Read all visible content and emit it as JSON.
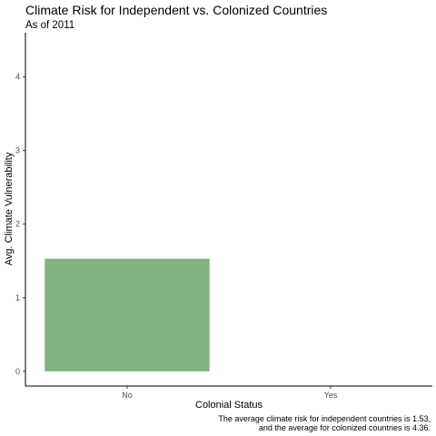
{
  "chart_data": {
    "type": "bar",
    "title": "Climate Risk for Independent vs. Colonized Countries",
    "subtitle": "As of 2011",
    "xlabel": "Colonial Status",
    "ylabel": "Avg. Climate Vulnerability",
    "categories": [
      "No",
      "Yes"
    ],
    "values": [
      1.53,
      null
    ],
    "yticks": [
      0,
      1,
      2,
      3,
      4
    ],
    "ylim": [
      -0.2,
      4.6
    ],
    "grid": false,
    "bar_color": "#80b280",
    "caption": [
      "The average climate risk for independent countries is 1.53,",
      "and the average for colonized countries is 4.36."
    ]
  }
}
